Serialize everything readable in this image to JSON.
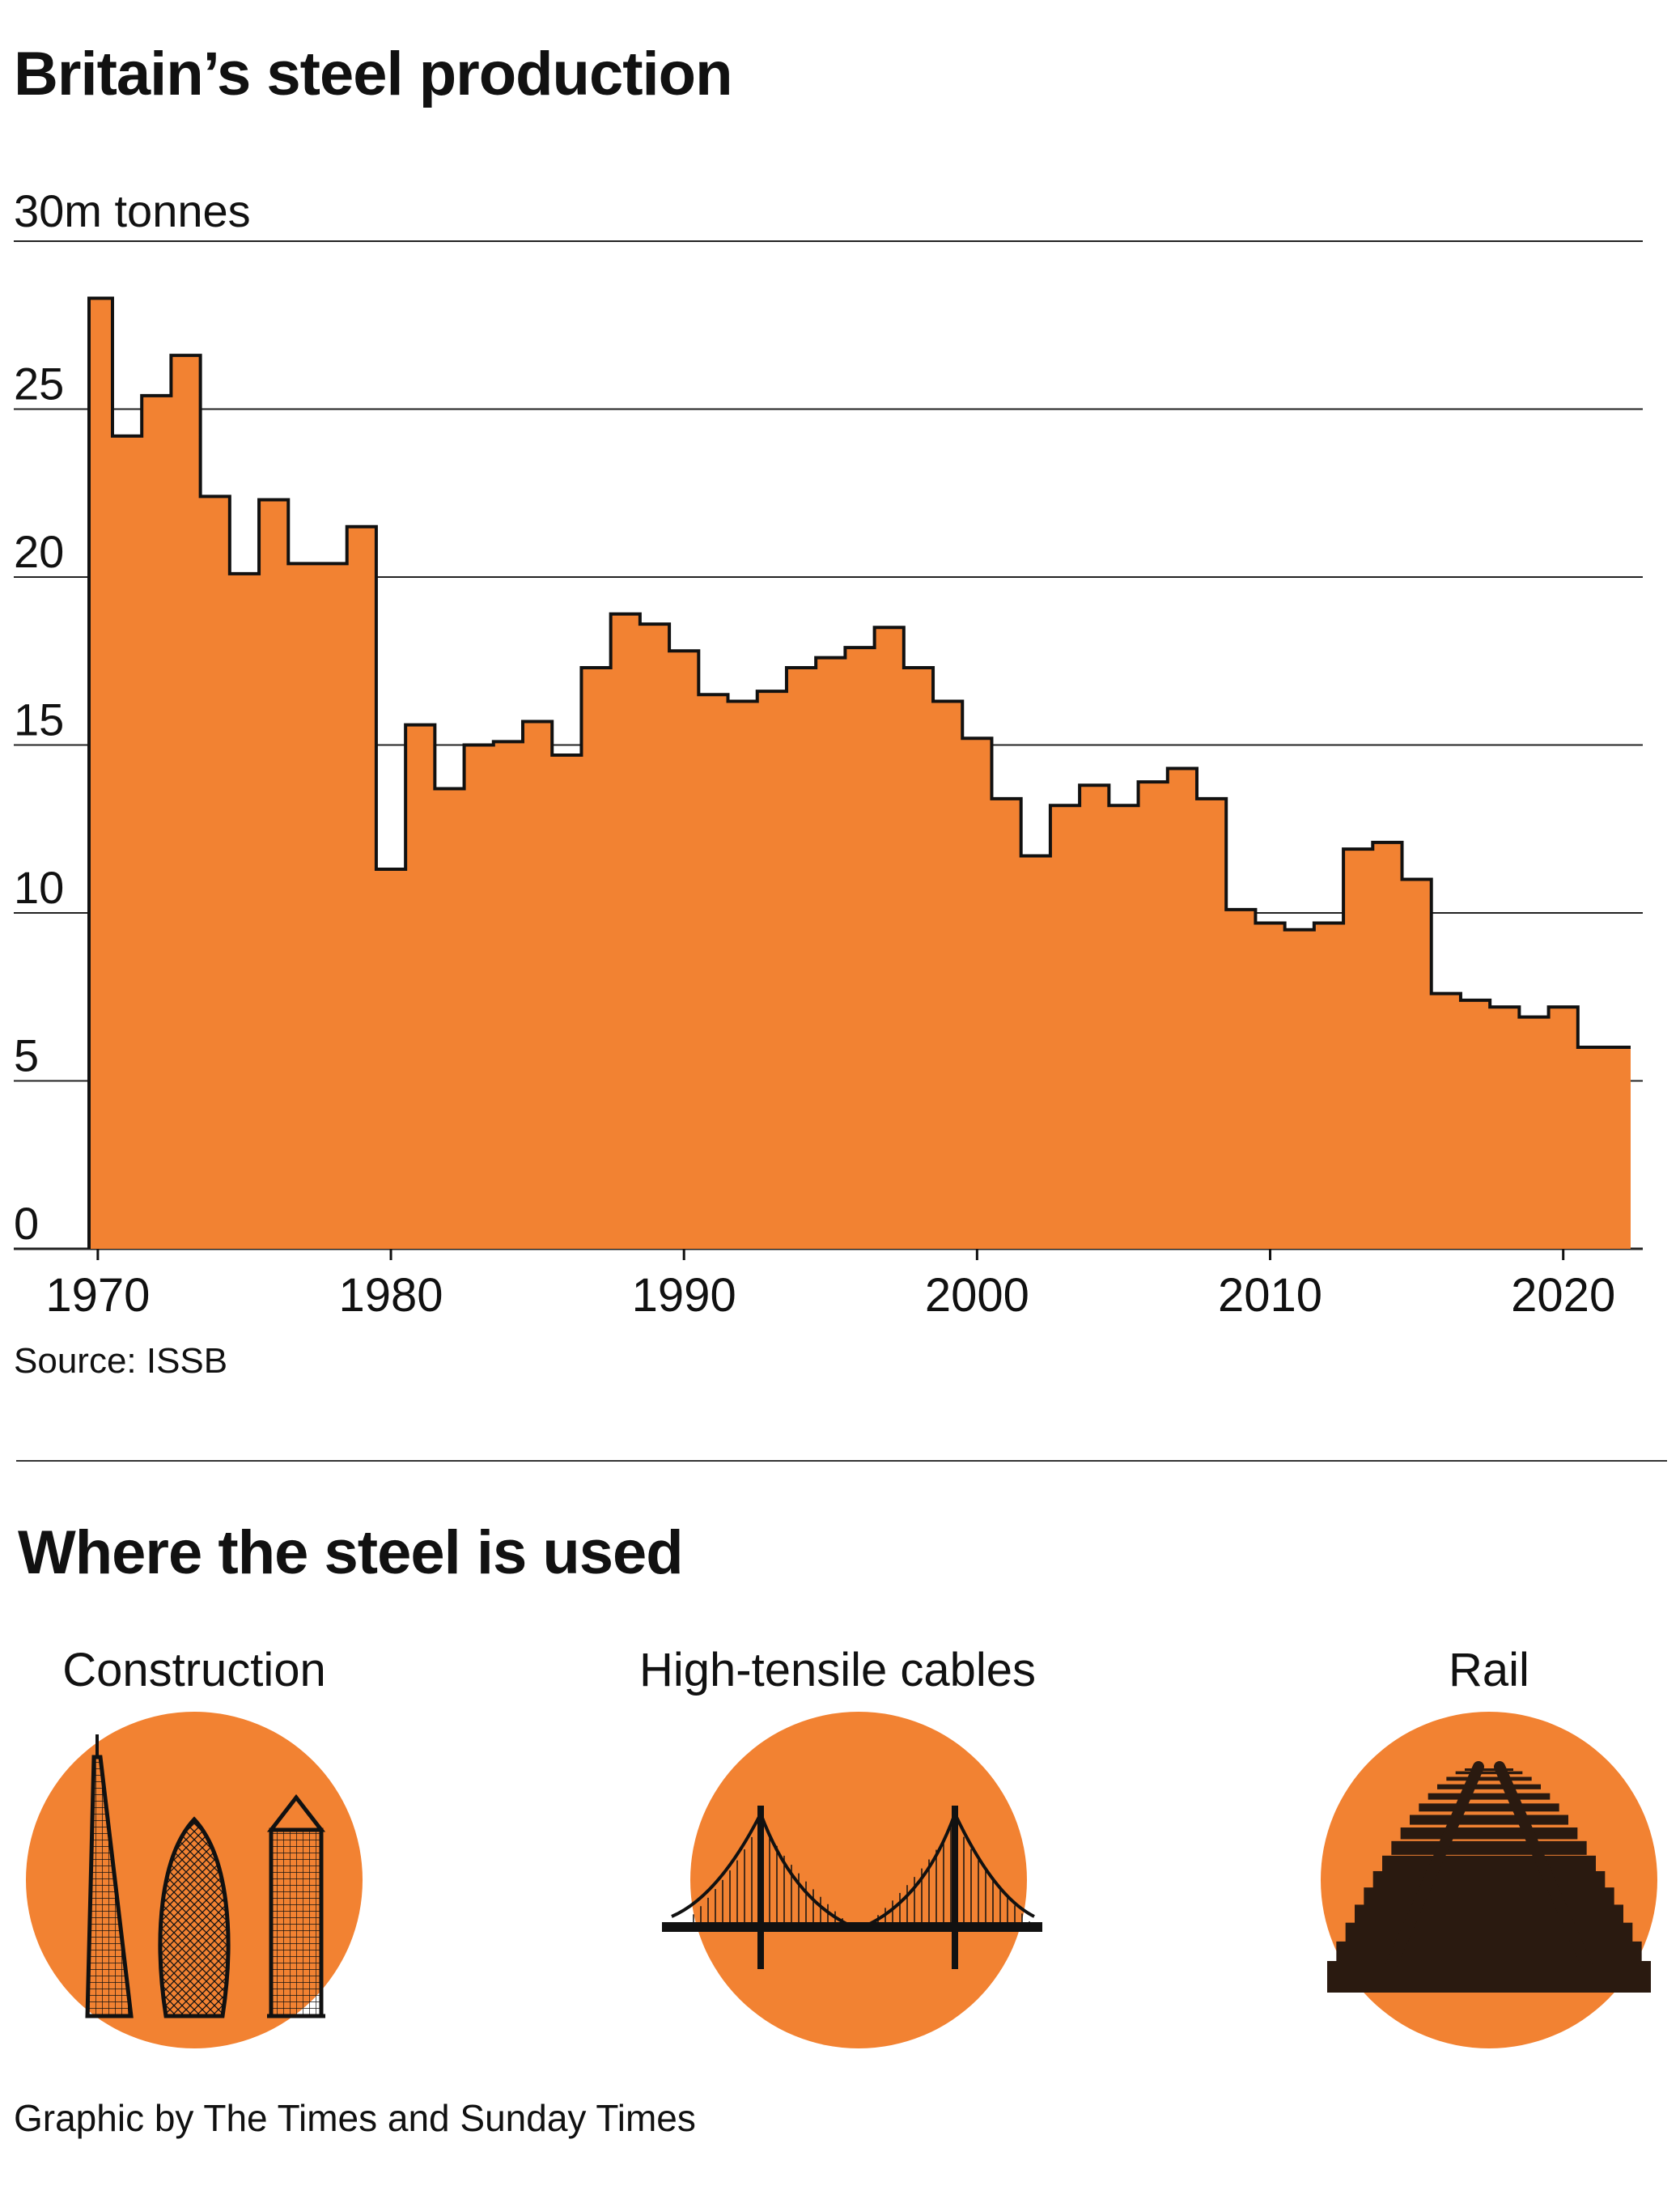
{
  "title": "Britain’s steel production",
  "source": "Source: ISSB",
  "section_title": "Where the steel is used",
  "uses": [
    {
      "label": "Construction",
      "icon": "skyscrapers-icon"
    },
    {
      "label": "High-tensile cables",
      "icon": "suspension-bridge-icon"
    },
    {
      "label": "Rail",
      "icon": "railway-track-icon"
    }
  ],
  "credit": "Graphic by The Times and Sunday Times",
  "colors": {
    "fill": "#f28232",
    "outline": "#111111",
    "grid": "#222222"
  },
  "chart_data": {
    "type": "area",
    "step": true,
    "ylabel": "30m tonnes",
    "ylim": [
      0,
      30
    ],
    "yticks": [
      {
        "value": 0,
        "label": "0"
      },
      {
        "value": 5,
        "label": "5"
      },
      {
        "value": 10,
        "label": "10"
      },
      {
        "value": 15,
        "label": "15"
      },
      {
        "value": 20,
        "label": "20"
      },
      {
        "value": 25,
        "label": "25"
      },
      {
        "value": 30,
        "label": "30m tonnes"
      }
    ],
    "xlim": [
      1969.7,
      2022.3
    ],
    "xticks": [
      {
        "value": 1970,
        "label": "1970"
      },
      {
        "value": 1980,
        "label": "1980"
      },
      {
        "value": 1990,
        "label": "1990"
      },
      {
        "value": 2000,
        "label": "2000"
      },
      {
        "value": 2010,
        "label": "2010"
      },
      {
        "value": 2020,
        "label": "2020"
      }
    ],
    "x": [
      1970,
      1971,
      1972,
      1973,
      1974,
      1975,
      1976,
      1977,
      1978,
      1979,
      1980,
      1981,
      1982,
      1983,
      1984,
      1985,
      1986,
      1987,
      1988,
      1989,
      1990,
      1991,
      1992,
      1993,
      1994,
      1995,
      1996,
      1997,
      1998,
      1999,
      2000,
      2001,
      2002,
      2003,
      2004,
      2005,
      2006,
      2007,
      2008,
      2009,
      2010,
      2011,
      2012,
      2013,
      2014,
      2015,
      2016,
      2017,
      2018,
      2019,
      2020,
      2021,
      2022
    ],
    "values": [
      28.3,
      24.2,
      25.4,
      26.6,
      22.4,
      20.1,
      22.3,
      20.4,
      20.4,
      21.5,
      11.3,
      15.6,
      13.7,
      15.0,
      15.1,
      15.7,
      14.7,
      17.3,
      18.9,
      18.6,
      17.8,
      16.5,
      16.3,
      16.6,
      17.3,
      17.6,
      17.9,
      18.5,
      17.3,
      16.3,
      15.2,
      13.4,
      11.7,
      13.2,
      13.8,
      13.2,
      13.9,
      14.3,
      13.4,
      10.1,
      9.7,
      9.5,
      9.7,
      11.9,
      12.1,
      11.0,
      7.6,
      7.4,
      7.2,
      6.9,
      7.2,
      6.0,
      6.0
    ]
  }
}
